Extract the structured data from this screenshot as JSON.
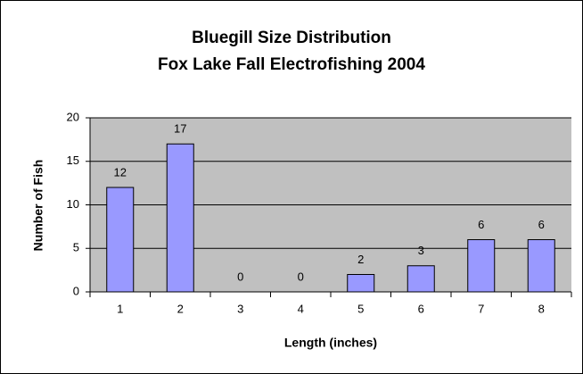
{
  "chart_data": {
    "type": "bar",
    "title": "Bluegill Size Distribution",
    "subtitle": "Fox Lake Fall Electrofishing 2004",
    "x_label": "Length (inches)",
    "y_label": "Number of Fish",
    "categories": [
      "1",
      "2",
      "3",
      "4",
      "5",
      "6",
      "7",
      "8"
    ],
    "values": [
      12,
      17,
      0,
      0,
      2,
      3,
      6,
      6
    ],
    "color": "#9999ff",
    "plot_background": "#c0c0c0",
    "ylim": [
      0,
      20
    ],
    "yticks": [
      0,
      5,
      10,
      15,
      20
    ],
    "grid": true
  }
}
